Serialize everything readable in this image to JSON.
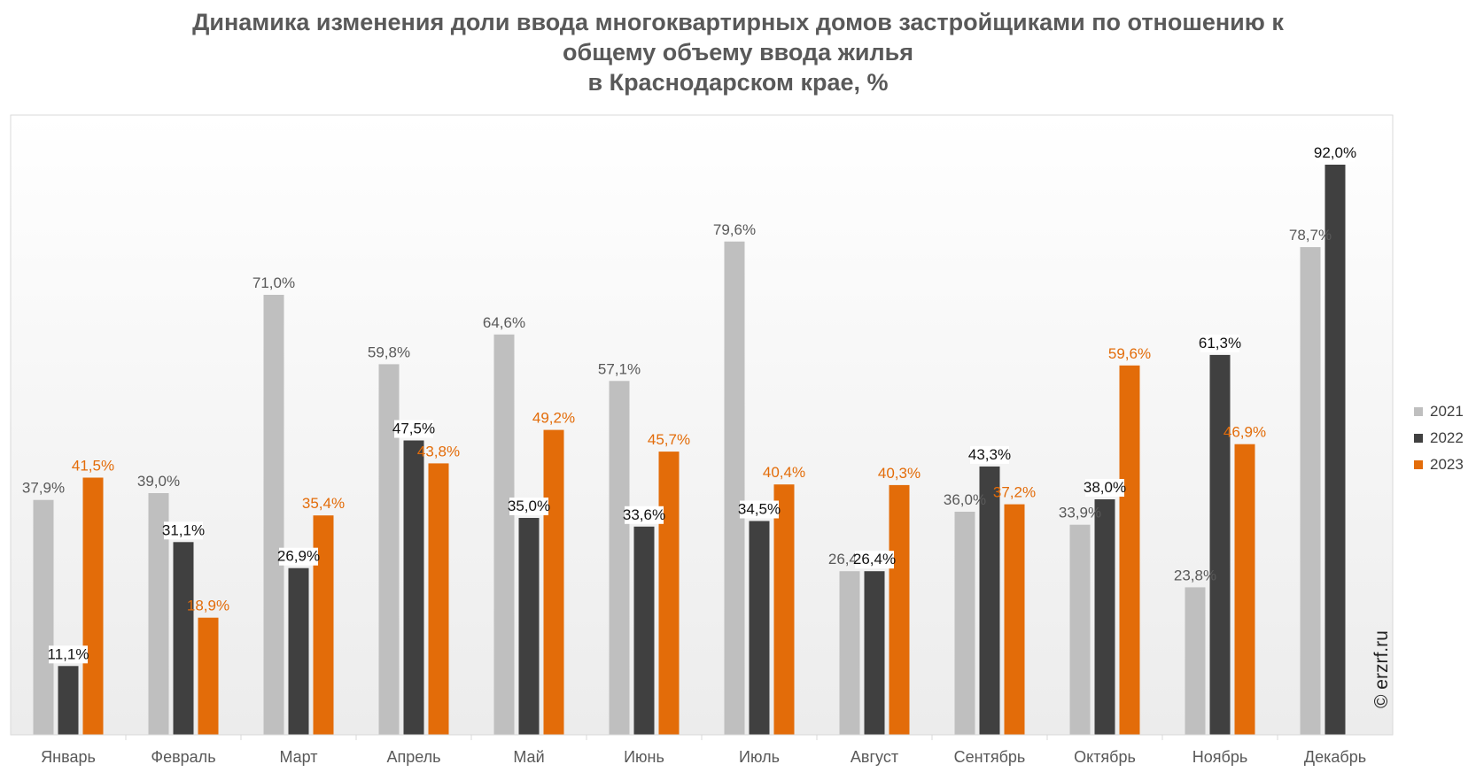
{
  "title_lines": [
    "Динамика изменения доли ввода многоквартирных домов застройщиками по отношению к",
    "общему объему ввода жилья",
    "в Краснодарском крае, %"
  ],
  "watermark": "© erzrf.ru",
  "colors": {
    "2021": "#bfbfbf",
    "2022": "#404040",
    "2023": "#e36c09"
  },
  "chart_data": {
    "type": "bar",
    "title": "Динамика изменения доли ввода многоквартирных домов застройщиками по отношению к общему объему ввода жилья в Краснодарском крае, %",
    "xlabel": "",
    "ylabel": "",
    "ylim": [
      0,
      100
    ],
    "grid": false,
    "legend_position": "right",
    "categories": [
      "Январь",
      "Февраль",
      "Март",
      "Апрель",
      "Май",
      "Июнь",
      "Июль",
      "Август",
      "Сентябрь",
      "Октябрь",
      "Ноябрь",
      "Декабрь"
    ],
    "series": [
      {
        "name": "2021",
        "values": [
          37.9,
          39.0,
          71.0,
          59.8,
          64.6,
          57.1,
          79.6,
          26.4,
          36.0,
          33.9,
          23.8,
          78.7
        ],
        "labels": [
          "37,9%",
          "39,0%",
          "71,0%",
          "59,8%",
          "64,6%",
          "57,1%",
          "79,6%",
          "26,4%",
          "36,0%",
          "33,9%",
          "23,8%",
          "78,7%"
        ]
      },
      {
        "name": "2022",
        "values": [
          11.1,
          31.1,
          26.9,
          47.5,
          35.0,
          33.6,
          34.5,
          26.4,
          43.3,
          38.0,
          61.3,
          92.0
        ],
        "labels": [
          "11,1%",
          "31,1%",
          "26,9%",
          "47,5%",
          "35,0%",
          "33,6%",
          "34,5%",
          "26,4%",
          "43,3%",
          "38,0%",
          "61,3%",
          "92,0%"
        ]
      },
      {
        "name": "2023",
        "values": [
          41.5,
          18.9,
          35.4,
          43.8,
          49.2,
          45.7,
          40.4,
          40.3,
          37.2,
          59.6,
          46.9,
          null
        ],
        "labels": [
          "41,5%",
          "18,9%",
          "35,4%",
          "43,8%",
          "49,2%",
          "45,7%",
          "40,4%",
          "40,3%",
          "37,2%",
          "59,6%",
          "46,9%",
          ""
        ]
      }
    ]
  }
}
